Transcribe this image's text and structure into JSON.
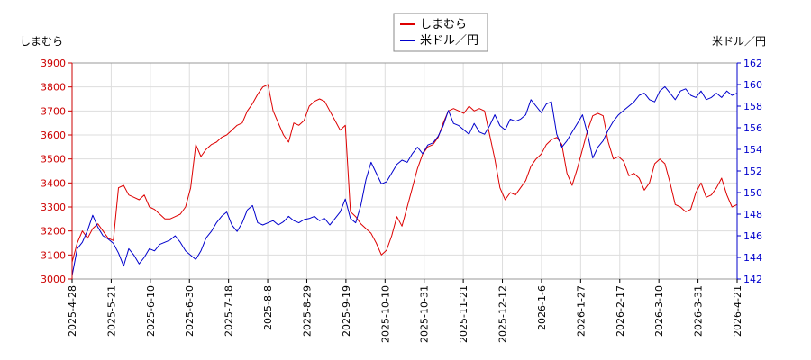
{
  "chart_data": {
    "type": "line",
    "left_axis_label": "しまむら",
    "right_axis_label": "米ドル／円",
    "legend": {
      "placement": "top-center"
    },
    "grid": true,
    "x_ticks": [
      "2025-4-28",
      "2025-5-21",
      "2025-6-10",
      "2025-6-30",
      "2025-7-18",
      "2025-8-8",
      "2025-8-29",
      "2025-9-19",
      "2025-10-10",
      "2025-10-31",
      "2025-11-21",
      "2025-12-12",
      "2026-1-6",
      "2026-1-27",
      "2026-2-17",
      "2026-3-10",
      "2026-3-31",
      "2026-4-21"
    ],
    "y_left": {
      "min": 3000,
      "max": 3900,
      "ticks": [
        3000,
        3100,
        3200,
        3300,
        3400,
        3500,
        3600,
        3700,
        3800,
        3900
      ],
      "color": "#cc0000"
    },
    "y_right": {
      "min": 142,
      "max": 162,
      "ticks": [
        142,
        144,
        146,
        148,
        150,
        152,
        154,
        156,
        158,
        160,
        162
      ],
      "color": "#0000cc"
    },
    "series": [
      {
        "name": "しまむら",
        "axis": "left",
        "color": "#dd0000",
        "points": [
          [
            0,
            3070
          ],
          [
            0.5,
            3150
          ],
          [
            1,
            3200
          ],
          [
            1.5,
            3170
          ],
          [
            2,
            3210
          ],
          [
            2.5,
            3230
          ],
          [
            3,
            3200
          ],
          [
            3.5,
            3170
          ],
          [
            4,
            3160
          ],
          [
            4.5,
            3380
          ],
          [
            5,
            3390
          ],
          [
            5.5,
            3350
          ],
          [
            6,
            3340
          ],
          [
            6.5,
            3330
          ],
          [
            7,
            3350
          ],
          [
            7.5,
            3300
          ],
          [
            8,
            3290
          ],
          [
            8.5,
            3270
          ],
          [
            9,
            3250
          ],
          [
            9.5,
            3250
          ],
          [
            10,
            3260
          ],
          [
            10.5,
            3270
          ],
          [
            11,
            3300
          ],
          [
            11.5,
            3380
          ],
          [
            12,
            3560
          ],
          [
            12.5,
            3510
          ],
          [
            13,
            3540
          ],
          [
            13.5,
            3560
          ],
          [
            14,
            3570
          ],
          [
            14.5,
            3590
          ],
          [
            15,
            3600
          ],
          [
            15.5,
            3620
          ],
          [
            16,
            3640
          ],
          [
            16.5,
            3650
          ],
          [
            17,
            3700
          ],
          [
            17.5,
            3730
          ],
          [
            18,
            3770
          ],
          [
            18.5,
            3800
          ],
          [
            19,
            3810
          ],
          [
            19.5,
            3700
          ],
          [
            20,
            3650
          ],
          [
            20.5,
            3600
          ],
          [
            21,
            3570
          ],
          [
            21.5,
            3650
          ],
          [
            22,
            3640
          ],
          [
            22.5,
            3660
          ],
          [
            23,
            3720
          ],
          [
            23.5,
            3740
          ],
          [
            24,
            3750
          ],
          [
            24.5,
            3740
          ],
          [
            25,
            3700
          ],
          [
            25.5,
            3660
          ],
          [
            26,
            3620
          ],
          [
            26.5,
            3640
          ],
          [
            27,
            3280
          ],
          [
            27.5,
            3260
          ],
          [
            28,
            3230
          ],
          [
            28.5,
            3210
          ],
          [
            29,
            3190
          ],
          [
            29.5,
            3150
          ],
          [
            30,
            3100
          ],
          [
            30.5,
            3120
          ],
          [
            31,
            3180
          ],
          [
            31.5,
            3260
          ],
          [
            32,
            3220
          ],
          [
            32.5,
            3300
          ],
          [
            33,
            3380
          ],
          [
            33.5,
            3460
          ],
          [
            34,
            3520
          ],
          [
            34.5,
            3550
          ],
          [
            35,
            3560
          ],
          [
            35.5,
            3590
          ],
          [
            36,
            3650
          ],
          [
            36.5,
            3700
          ],
          [
            37,
            3710
          ],
          [
            37.5,
            3700
          ],
          [
            38,
            3690
          ],
          [
            38.5,
            3720
          ],
          [
            39,
            3700
          ],
          [
            39.5,
            3710
          ],
          [
            40,
            3700
          ],
          [
            40.5,
            3600
          ],
          [
            41,
            3500
          ],
          [
            41.5,
            3380
          ],
          [
            42,
            3330
          ],
          [
            42.5,
            3360
          ],
          [
            43,
            3350
          ],
          [
            43.5,
            3380
          ],
          [
            44,
            3410
          ],
          [
            44.5,
            3470
          ],
          [
            45,
            3500
          ],
          [
            45.5,
            3520
          ],
          [
            46,
            3560
          ],
          [
            46.5,
            3580
          ],
          [
            47,
            3590
          ],
          [
            47.5,
            3560
          ],
          [
            48,
            3440
          ],
          [
            48.5,
            3390
          ],
          [
            49,
            3460
          ],
          [
            49.5,
            3540
          ],
          [
            50,
            3620
          ],
          [
            50.5,
            3680
          ],
          [
            51,
            3690
          ],
          [
            51.5,
            3680
          ],
          [
            52,
            3570
          ],
          [
            52.5,
            3500
          ],
          [
            53,
            3510
          ],
          [
            53.5,
            3490
          ],
          [
            54,
            3430
          ],
          [
            54.5,
            3440
          ],
          [
            55,
            3420
          ],
          [
            55.5,
            3370
          ],
          [
            56,
            3400
          ],
          [
            56.5,
            3480
          ],
          [
            57,
            3500
          ],
          [
            57.5,
            3480
          ],
          [
            58,
            3400
          ],
          [
            58.5,
            3310
          ],
          [
            59,
            3300
          ],
          [
            59.5,
            3280
          ],
          [
            60,
            3290
          ],
          [
            60.5,
            3360
          ],
          [
            61,
            3400
          ],
          [
            61.5,
            3340
          ],
          [
            62,
            3350
          ],
          [
            62.5,
            3380
          ],
          [
            63,
            3420
          ],
          [
            63.5,
            3350
          ],
          [
            64,
            3300
          ],
          [
            64.5,
            3310
          ]
        ]
      },
      {
        "name": "米ドル／円",
        "axis": "right",
        "color": "#0000cc",
        "points": [
          [
            0,
            142.3
          ],
          [
            0.5,
            144.8
          ],
          [
            1,
            145.4
          ],
          [
            1.5,
            146.5
          ],
          [
            2,
            147.9
          ],
          [
            2.5,
            146.8
          ],
          [
            3,
            146.0
          ],
          [
            3.5,
            145.7
          ],
          [
            4,
            145.3
          ],
          [
            4.5,
            144.4
          ],
          [
            5,
            143.2
          ],
          [
            5.5,
            144.8
          ],
          [
            6,
            144.2
          ],
          [
            6.5,
            143.4
          ],
          [
            7,
            144.0
          ],
          [
            7.5,
            144.8
          ],
          [
            8,
            144.6
          ],
          [
            8.5,
            145.2
          ],
          [
            9,
            145.4
          ],
          [
            9.5,
            145.6
          ],
          [
            10,
            146.0
          ],
          [
            10.5,
            145.4
          ],
          [
            11,
            144.6
          ],
          [
            11.5,
            144.2
          ],
          [
            12,
            143.8
          ],
          [
            12.5,
            144.6
          ],
          [
            13,
            145.8
          ],
          [
            13.5,
            146.4
          ],
          [
            14,
            147.2
          ],
          [
            14.5,
            147.8
          ],
          [
            15,
            148.2
          ],
          [
            15.5,
            147.0
          ],
          [
            16,
            146.4
          ],
          [
            16.5,
            147.2
          ],
          [
            17,
            148.4
          ],
          [
            17.5,
            148.8
          ],
          [
            18,
            147.2
          ],
          [
            18.5,
            147.0
          ],
          [
            19,
            147.2
          ],
          [
            19.5,
            147.4
          ],
          [
            20,
            147.0
          ],
          [
            20.5,
            147.3
          ],
          [
            21,
            147.8
          ],
          [
            21.5,
            147.4
          ],
          [
            22,
            147.2
          ],
          [
            22.5,
            147.5
          ],
          [
            23,
            147.6
          ],
          [
            23.5,
            147.8
          ],
          [
            24,
            147.4
          ],
          [
            24.5,
            147.6
          ],
          [
            25,
            147.0
          ],
          [
            25.5,
            147.6
          ],
          [
            26,
            148.2
          ],
          [
            26.5,
            149.4
          ],
          [
            27,
            147.6
          ],
          [
            27.5,
            147.2
          ],
          [
            28,
            148.8
          ],
          [
            28.5,
            151.2
          ],
          [
            29,
            152.8
          ],
          [
            29.5,
            151.8
          ],
          [
            30,
            150.8
          ],
          [
            30.5,
            151.0
          ],
          [
            31,
            151.8
          ],
          [
            31.5,
            152.6
          ],
          [
            32,
            153.0
          ],
          [
            32.5,
            152.8
          ],
          [
            33,
            153.6
          ],
          [
            33.5,
            154.2
          ],
          [
            34,
            153.6
          ],
          [
            34.5,
            154.4
          ],
          [
            35,
            154.6
          ],
          [
            35.5,
            155.2
          ],
          [
            36,
            156.2
          ],
          [
            36.5,
            157.6
          ],
          [
            37,
            156.4
          ],
          [
            37.5,
            156.2
          ],
          [
            38,
            155.8
          ],
          [
            38.5,
            155.4
          ],
          [
            39,
            156.4
          ],
          [
            39.5,
            155.6
          ],
          [
            40,
            155.4
          ],
          [
            40.5,
            156.2
          ],
          [
            41,
            157.2
          ],
          [
            41.5,
            156.2
          ],
          [
            42,
            155.8
          ],
          [
            42.5,
            156.8
          ],
          [
            43,
            156.6
          ],
          [
            43.5,
            156.8
          ],
          [
            44,
            157.2
          ],
          [
            44.5,
            158.6
          ],
          [
            45,
            158.0
          ],
          [
            45.5,
            157.4
          ],
          [
            46,
            158.2
          ],
          [
            46.5,
            158.4
          ],
          [
            47,
            155.4
          ],
          [
            47.5,
            154.2
          ],
          [
            48,
            154.8
          ],
          [
            48.5,
            155.6
          ],
          [
            49,
            156.4
          ],
          [
            49.5,
            157.2
          ],
          [
            50,
            155.4
          ],
          [
            50.5,
            153.2
          ],
          [
            51,
            154.2
          ],
          [
            51.5,
            154.8
          ],
          [
            52,
            155.8
          ],
          [
            52.5,
            156.6
          ],
          [
            53,
            157.2
          ],
          [
            53.5,
            157.6
          ],
          [
            54,
            158.0
          ],
          [
            54.5,
            158.4
          ],
          [
            55,
            159.0
          ],
          [
            55.5,
            159.2
          ],
          [
            56,
            158.6
          ],
          [
            56.5,
            158.4
          ],
          [
            57,
            159.4
          ],
          [
            57.5,
            159.8
          ],
          [
            58,
            159.2
          ],
          [
            58.5,
            158.6
          ],
          [
            59,
            159.4
          ],
          [
            59.5,
            159.6
          ],
          [
            60,
            159.0
          ],
          [
            60.5,
            158.8
          ],
          [
            61,
            159.4
          ],
          [
            61.5,
            158.6
          ],
          [
            62,
            158.8
          ],
          [
            62.5,
            159.2
          ],
          [
            63,
            158.8
          ],
          [
            63.5,
            159.4
          ],
          [
            64,
            159.0
          ],
          [
            64.5,
            159.2
          ]
        ]
      }
    ]
  }
}
